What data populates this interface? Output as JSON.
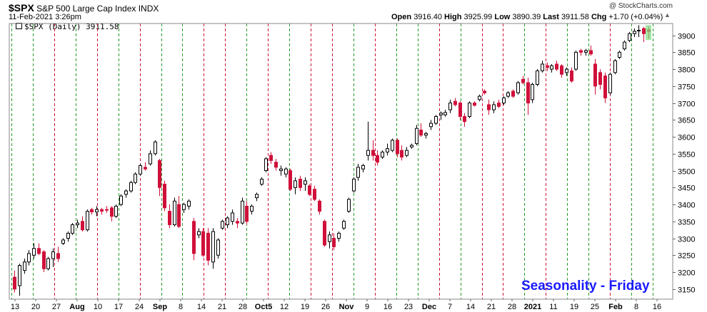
{
  "header": {
    "symbol": "$SPX",
    "name": "S&P 500 Large Cap Index",
    "exchange": "INDX",
    "date": "11-Feb-2021 3:26pm",
    "open_label": "Open",
    "open": "3916.40",
    "high_label": "High",
    "high": "3925.99",
    "low_label": "Low",
    "low": "3890.39",
    "last_label": "Last",
    "last": "3911.58",
    "chg_label": "Chg",
    "chg": "+1.70 (+0.04%)",
    "credit": "@ StockCharts.com",
    "legend": "$SPX (Daily) 3911.58"
  },
  "annotation": "Seasonality - Friday",
  "colors": {
    "up_candle": "#ffffff",
    "down_candle": "#d0103a",
    "outline": "#000000",
    "green_line": "#2a9a2a",
    "red_line": "#d0103a",
    "annotation": "#1a1aff"
  },
  "chart_data": {
    "type": "candlestick",
    "ylim": [
      3120,
      3935
    ],
    "y_ticks": [
      3150,
      3200,
      3250,
      3300,
      3350,
      3400,
      3450,
      3500,
      3550,
      3600,
      3650,
      3700,
      3750,
      3800,
      3850,
      3900
    ],
    "x_tick_labels": [
      "13",
      "20",
      "27",
      "Aug",
      "10",
      "17",
      "24",
      "Sep",
      "8",
      "14",
      "21",
      "28",
      "Oct5",
      "12",
      "19",
      "26",
      "Nov",
      "9",
      "16",
      "23",
      "Dec",
      "7",
      "14",
      "21",
      "28",
      "2021",
      "11",
      "19",
      "25",
      "Feb",
      "8",
      "16"
    ],
    "x_tick_bold": [
      "Aug",
      "Sep",
      "Oct5",
      "Nov",
      "Dec",
      "2021",
      "Feb"
    ],
    "vertical_lines": [
      {
        "type": "green"
      },
      {
        "type": "green"
      },
      {
        "type": "red"
      },
      {
        "type": "green"
      },
      {
        "type": "red"
      },
      {
        "type": "green"
      },
      {
        "type": "red"
      },
      {
        "type": "green"
      },
      {
        "type": "green"
      },
      {
        "type": "red"
      },
      {
        "type": "red"
      },
      {
        "type": "green"
      },
      {
        "type": "red"
      },
      {
        "type": "green"
      },
      {
        "type": "red"
      },
      {
        "type": "red"
      },
      {
        "type": "green"
      },
      {
        "type": "red"
      },
      {
        "type": "green"
      },
      {
        "type": "green"
      },
      {
        "type": "red"
      },
      {
        "type": "green"
      },
      {
        "type": "red"
      },
      {
        "type": "red"
      },
      {
        "type": "green"
      },
      {
        "type": "red"
      },
      {
        "type": "green"
      },
      {
        "type": "green"
      },
      {
        "type": "red"
      },
      {
        "type": "green"
      },
      {
        "type": "green"
      }
    ],
    "candles": [
      {
        "o": 3185,
        "h": 3205,
        "l": 3140,
        "c": 3150
      },
      {
        "o": 3160,
        "h": 3225,
        "l": 3130,
        "c": 3220
      },
      {
        "o": 3205,
        "h": 3240,
        "l": 3195,
        "c": 3230
      },
      {
        "o": 3230,
        "h": 3265,
        "l": 3220,
        "c": 3255
      },
      {
        "o": 3250,
        "h": 3285,
        "l": 3240,
        "c": 3270
      },
      {
        "o": 3270,
        "h": 3285,
        "l": 3250,
        "c": 3255
      },
      {
        "o": 3260,
        "h": 3265,
        "l": 3200,
        "c": 3210
      },
      {
        "o": 3210,
        "h": 3245,
        "l": 3205,
        "c": 3240
      },
      {
        "o": 3240,
        "h": 3270,
        "l": 3215,
        "c": 3260
      },
      {
        "o": 3255,
        "h": 3275,
        "l": 3230,
        "c": 3240
      },
      {
        "o": 3285,
        "h": 3300,
        "l": 3280,
        "c": 3295
      },
      {
        "o": 3300,
        "h": 3320,
        "l": 3290,
        "c": 3315
      },
      {
        "o": 3315,
        "h": 3345,
        "l": 3310,
        "c": 3340
      },
      {
        "o": 3340,
        "h": 3355,
        "l": 3330,
        "c": 3345
      },
      {
        "o": 3350,
        "h": 3365,
        "l": 3320,
        "c": 3325
      },
      {
        "o": 3325,
        "h": 3385,
        "l": 3320,
        "c": 3380
      },
      {
        "o": 3385,
        "h": 3390,
        "l": 3370,
        "c": 3378
      },
      {
        "o": 3378,
        "h": 3395,
        "l": 3365,
        "c": 3385
      },
      {
        "o": 3385,
        "h": 3390,
        "l": 3370,
        "c": 3380
      },
      {
        "o": 3385,
        "h": 3395,
        "l": 3375,
        "c": 3383
      },
      {
        "o": 3390,
        "h": 3395,
        "l": 3350,
        "c": 3365
      },
      {
        "o": 3365,
        "h": 3400,
        "l": 3360,
        "c": 3395
      },
      {
        "o": 3400,
        "h": 3430,
        "l": 3395,
        "c": 3425
      },
      {
        "o": 3430,
        "h": 3445,
        "l": 3420,
        "c": 3440
      },
      {
        "o": 3440,
        "h": 3470,
        "l": 3435,
        "c": 3465
      },
      {
        "o": 3465,
        "h": 3495,
        "l": 3460,
        "c": 3490
      },
      {
        "o": 3490,
        "h": 3520,
        "l": 3485,
        "c": 3515
      },
      {
        "o": 3510,
        "h": 3525,
        "l": 3500,
        "c": 3505
      },
      {
        "o": 3520,
        "h": 3560,
        "l": 3515,
        "c": 3550
      },
      {
        "o": 3550,
        "h": 3590,
        "l": 3545,
        "c": 3585
      },
      {
        "o": 3530,
        "h": 3535,
        "l": 3425,
        "c": 3450
      },
      {
        "o": 3460,
        "h": 3470,
        "l": 3380,
        "c": 3390
      },
      {
        "o": 3380,
        "h": 3400,
        "l": 3330,
        "c": 3340
      },
      {
        "o": 3340,
        "h": 3420,
        "l": 3335,
        "c": 3410
      },
      {
        "o": 3400,
        "h": 3425,
        "l": 3330,
        "c": 3335
      },
      {
        "o": 3385,
        "h": 3405,
        "l": 3375,
        "c": 3400
      },
      {
        "o": 3395,
        "h": 3415,
        "l": 3385,
        "c": 3410
      },
      {
        "o": 3350,
        "h": 3360,
        "l": 3235,
        "c": 3255
      },
      {
        "o": 3310,
        "h": 3330,
        "l": 3300,
        "c": 3320
      },
      {
        "o": 3320,
        "h": 3330,
        "l": 3245,
        "c": 3250
      },
      {
        "o": 3315,
        "h": 3330,
        "l": 3220,
        "c": 3235
      },
      {
        "o": 3230,
        "h": 3330,
        "l": 3210,
        "c": 3320
      },
      {
        "o": 3250,
        "h": 3300,
        "l": 3240,
        "c": 3295
      },
      {
        "o": 3330,
        "h": 3355,
        "l": 3325,
        "c": 3350
      },
      {
        "o": 3340,
        "h": 3365,
        "l": 3330,
        "c": 3360
      },
      {
        "o": 3350,
        "h": 3385,
        "l": 3340,
        "c": 3375
      },
      {
        "o": 3350,
        "h": 3360,
        "l": 3330,
        "c": 3345
      },
      {
        "o": 3345,
        "h": 3420,
        "l": 3340,
        "c": 3410
      },
      {
        "o": 3395,
        "h": 3410,
        "l": 3340,
        "c": 3350
      },
      {
        "o": 3380,
        "h": 3400,
        "l": 3370,
        "c": 3395
      },
      {
        "o": 3420,
        "h": 3435,
        "l": 3410,
        "c": 3430
      },
      {
        "o": 3460,
        "h": 3480,
        "l": 3455,
        "c": 3475
      },
      {
        "o": 3500,
        "h": 3540,
        "l": 3495,
        "c": 3535
      },
      {
        "o": 3545,
        "h": 3555,
        "l": 3520,
        "c": 3530
      },
      {
        "o": 3525,
        "h": 3535,
        "l": 3500,
        "c": 3510
      },
      {
        "o": 3500,
        "h": 3515,
        "l": 3485,
        "c": 3505
      },
      {
        "o": 3490,
        "h": 3510,
        "l": 3480,
        "c": 3505
      },
      {
        "o": 3500,
        "h": 3505,
        "l": 3440,
        "c": 3445
      },
      {
        "o": 3450,
        "h": 3480,
        "l": 3430,
        "c": 3470
      },
      {
        "o": 3475,
        "h": 3485,
        "l": 3440,
        "c": 3450
      },
      {
        "o": 3460,
        "h": 3480,
        "l": 3440,
        "c": 3470
      },
      {
        "o": 3455,
        "h": 3460,
        "l": 3425,
        "c": 3430
      },
      {
        "o": 3445,
        "h": 3455,
        "l": 3410,
        "c": 3415
      },
      {
        "o": 3410,
        "h": 3415,
        "l": 3370,
        "c": 3380
      },
      {
        "o": 3350,
        "h": 3355,
        "l": 3275,
        "c": 3280
      },
      {
        "o": 3290,
        "h": 3320,
        "l": 3270,
        "c": 3310
      },
      {
        "o": 3300,
        "h": 3315,
        "l": 3265,
        "c": 3275
      },
      {
        "o": 3300,
        "h": 3320,
        "l": 3290,
        "c": 3315
      },
      {
        "o": 3330,
        "h": 3355,
        "l": 3325,
        "c": 3350
      },
      {
        "o": 3380,
        "h": 3420,
        "l": 3375,
        "c": 3415
      },
      {
        "o": 3440,
        "h": 3480,
        "l": 3435,
        "c": 3475
      },
      {
        "o": 3480,
        "h": 3520,
        "l": 3470,
        "c": 3510
      },
      {
        "o": 3505,
        "h": 3520,
        "l": 3495,
        "c": 3515
      },
      {
        "o": 3545,
        "h": 3645,
        "l": 3530,
        "c": 3560
      },
      {
        "o": 3560,
        "h": 3590,
        "l": 3530,
        "c": 3545
      },
      {
        "o": 3545,
        "h": 3560,
        "l": 3515,
        "c": 3525
      },
      {
        "o": 3540,
        "h": 3560,
        "l": 3535,
        "c": 3555
      },
      {
        "o": 3555,
        "h": 3580,
        "l": 3545,
        "c": 3565
      },
      {
        "o": 3560,
        "h": 3595,
        "l": 3555,
        "c": 3590
      },
      {
        "o": 3590,
        "h": 3595,
        "l": 3540,
        "c": 3550
      },
      {
        "o": 3560,
        "h": 3575,
        "l": 3530,
        "c": 3540
      },
      {
        "o": 3545,
        "h": 3570,
        "l": 3540,
        "c": 3560
      },
      {
        "o": 3570,
        "h": 3580,
        "l": 3565,
        "c": 3575
      },
      {
        "o": 3580,
        "h": 3635,
        "l": 3575,
        "c": 3625
      },
      {
        "o": 3620,
        "h": 3640,
        "l": 3600,
        "c": 3605
      },
      {
        "o": 3605,
        "h": 3615,
        "l": 3595,
        "c": 3610
      },
      {
        "o": 3630,
        "h": 3650,
        "l": 3620,
        "c": 3640
      },
      {
        "o": 3640,
        "h": 3665,
        "l": 3635,
        "c": 3660
      },
      {
        "o": 3665,
        "h": 3675,
        "l": 3650,
        "c": 3670
      },
      {
        "o": 3665,
        "h": 3680,
        "l": 3660,
        "c": 3672
      },
      {
        "o": 3680,
        "h": 3710,
        "l": 3670,
        "c": 3700
      },
      {
        "o": 3705,
        "h": 3715,
        "l": 3690,
        "c": 3695
      },
      {
        "o": 3700,
        "h": 3705,
        "l": 3650,
        "c": 3660
      },
      {
        "o": 3660,
        "h": 3670,
        "l": 3630,
        "c": 3645
      },
      {
        "o": 3660,
        "h": 3705,
        "l": 3655,
        "c": 3700
      },
      {
        "o": 3700,
        "h": 3705,
        "l": 3690,
        "c": 3693
      },
      {
        "o": 3710,
        "h": 3725,
        "l": 3705,
        "c": 3720
      },
      {
        "o": 3735,
        "h": 3740,
        "l": 3725,
        "c": 3730
      },
      {
        "o": 3695,
        "h": 3710,
        "l": 3665,
        "c": 3680
      },
      {
        "o": 3680,
        "h": 3705,
        "l": 3670,
        "c": 3695
      },
      {
        "o": 3700,
        "h": 3710,
        "l": 3685,
        "c": 3690
      },
      {
        "o": 3700,
        "h": 3720,
        "l": 3695,
        "c": 3715
      },
      {
        "o": 3720,
        "h": 3735,
        "l": 3715,
        "c": 3730
      },
      {
        "o": 3735,
        "h": 3740,
        "l": 3715,
        "c": 3720
      },
      {
        "o": 3730,
        "h": 3765,
        "l": 3725,
        "c": 3760
      },
      {
        "o": 3770,
        "h": 3780,
        "l": 3755,
        "c": 3760
      },
      {
        "o": 3760,
        "h": 3775,
        "l": 3665,
        "c": 3700
      },
      {
        "o": 3710,
        "h": 3760,
        "l": 3700,
        "c": 3755
      },
      {
        "o": 3755,
        "h": 3800,
        "l": 3750,
        "c": 3795
      },
      {
        "o": 3795,
        "h": 3825,
        "l": 3790,
        "c": 3815
      },
      {
        "o": 3810,
        "h": 3820,
        "l": 3795,
        "c": 3805
      },
      {
        "o": 3800,
        "h": 3815,
        "l": 3790,
        "c": 3810
      },
      {
        "o": 3815,
        "h": 3825,
        "l": 3795,
        "c": 3800
      },
      {
        "o": 3810,
        "h": 3815,
        "l": 3775,
        "c": 3785
      },
      {
        "o": 3790,
        "h": 3805,
        "l": 3780,
        "c": 3800
      },
      {
        "o": 3795,
        "h": 3805,
        "l": 3760,
        "c": 3765
      },
      {
        "o": 3800,
        "h": 3855,
        "l": 3795,
        "c": 3850
      },
      {
        "o": 3855,
        "h": 3860,
        "l": 3840,
        "c": 3850
      },
      {
        "o": 3850,
        "h": 3860,
        "l": 3840,
        "c": 3855
      },
      {
        "o": 3855,
        "h": 3870,
        "l": 3840,
        "c": 3845
      },
      {
        "o": 3815,
        "h": 3830,
        "l": 3725,
        "c": 3750
      },
      {
        "o": 3790,
        "h": 3800,
        "l": 3740,
        "c": 3755
      },
      {
        "o": 3780,
        "h": 3790,
        "l": 3700,
        "c": 3715
      },
      {
        "o": 3730,
        "h": 3790,
        "l": 3725,
        "c": 3785
      },
      {
        "o": 3790,
        "h": 3830,
        "l": 3785,
        "c": 3825
      },
      {
        "o": 3835,
        "h": 3855,
        "l": 3830,
        "c": 3850
      },
      {
        "o": 3860,
        "h": 3885,
        "l": 3855,
        "c": 3880
      },
      {
        "o": 3885,
        "h": 3910,
        "l": 3880,
        "c": 3905
      },
      {
        "o": 3905,
        "h": 3920,
        "l": 3895,
        "c": 3912
      },
      {
        "o": 3915,
        "h": 3930,
        "l": 3895,
        "c": 3915
      },
      {
        "o": 3920,
        "h": 3925,
        "l": 3880,
        "c": 3905
      },
      {
        "o": 3916.4,
        "h": 3925.99,
        "l": 3890.39,
        "c": 3911.58
      }
    ]
  }
}
